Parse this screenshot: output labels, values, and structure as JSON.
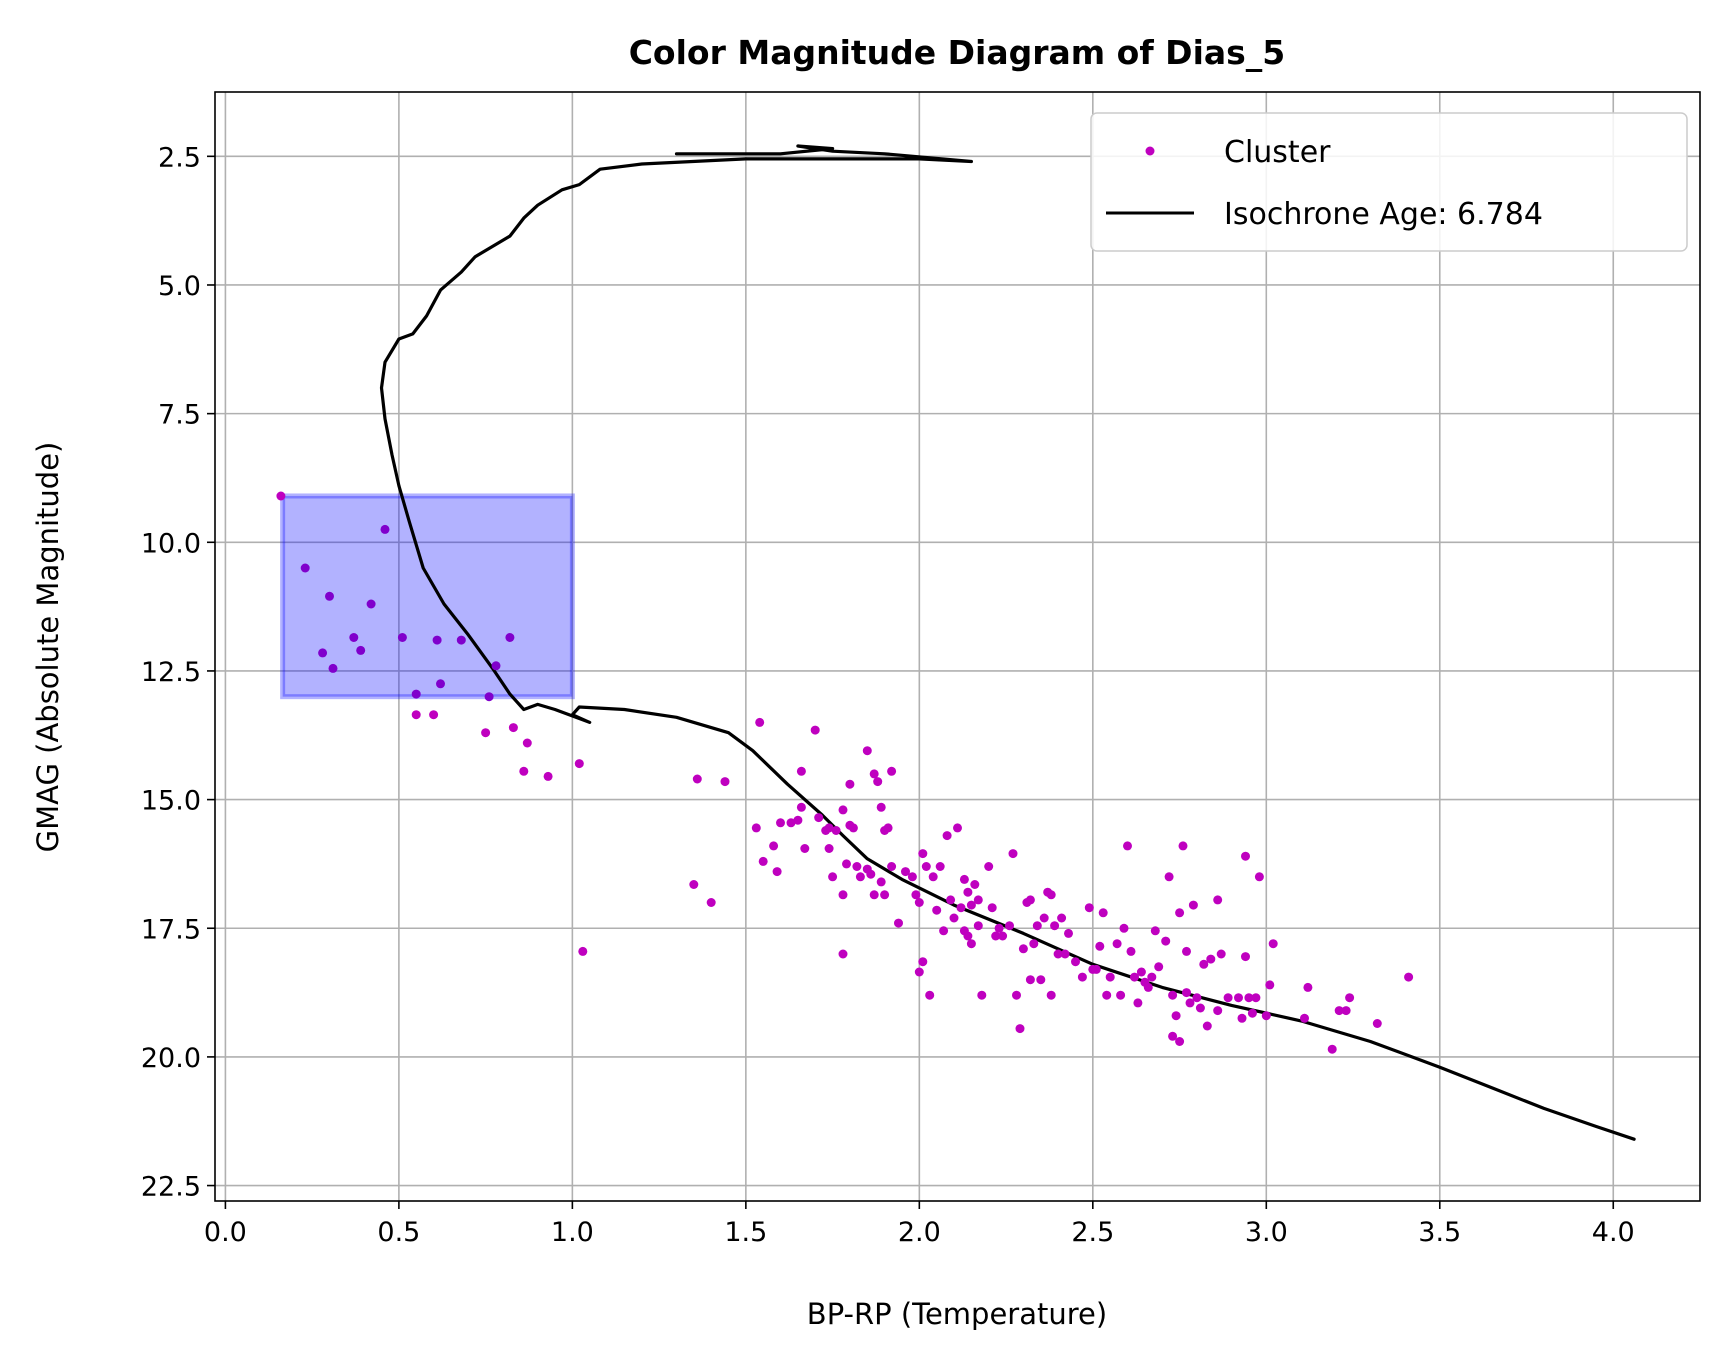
{
  "chart_data": {
    "type": "scatter",
    "title": "Color Magnitude Diagram of Dias_5",
    "xlabel": "BP-RP (Temperature)",
    "ylabel": "GMAG (Absolute Magnitude)",
    "xlim": [
      -0.03,
      4.25
    ],
    "ylim": [
      22.8,
      1.25
    ],
    "y_inverted": true,
    "xticks": [
      0.0,
      0.5,
      1.0,
      1.5,
      2.0,
      2.5,
      3.0,
      3.5,
      4.0
    ],
    "xtick_labels": [
      "0.0",
      "0.5",
      "1.0",
      "1.5",
      "2.0",
      "2.5",
      "3.0",
      "3.5",
      "4.0"
    ],
    "yticks": [
      2.5,
      5.0,
      7.5,
      10.0,
      12.5,
      15.0,
      17.5,
      20.0,
      22.5
    ],
    "ytick_labels": [
      "2.5",
      "5.0",
      "7.5",
      "10.0",
      "12.5",
      "15.0",
      "17.5",
      "20.0",
      "22.5"
    ],
    "grid": true,
    "legend_position": "top-right",
    "colors": {
      "cluster": "#bf00bf",
      "highlighted": "#8000cc",
      "isochrone": "#000000",
      "selection_fill": "#0000ff",
      "grid": "#b0b0b0"
    },
    "selection_box": {
      "x": [
        0.165,
        1.0
      ],
      "y": [
        9.1,
        13.0
      ]
    },
    "series": [
      {
        "name": "Cluster",
        "kind": "scatter",
        "points": [
          [
            0.16,
            9.1
          ],
          [
            0.23,
            10.5
          ],
          [
            0.3,
            11.05
          ],
          [
            0.28,
            12.15
          ],
          [
            0.31,
            12.45
          ],
          [
            0.37,
            11.85
          ],
          [
            0.39,
            12.1
          ],
          [
            0.42,
            11.2
          ],
          [
            0.46,
            9.75
          ],
          [
            0.51,
            11.85
          ],
          [
            0.55,
            12.95
          ],
          [
            0.61,
            11.9
          ],
          [
            0.62,
            12.75
          ],
          [
            0.68,
            11.9
          ],
          [
            0.76,
            13.0
          ],
          [
            0.78,
            12.4
          ],
          [
            0.82,
            11.85
          ],
          [
            0.55,
            13.35
          ],
          [
            0.6,
            13.35
          ],
          [
            0.75,
            13.7
          ],
          [
            0.83,
            13.6
          ],
          [
            0.86,
            14.45
          ],
          [
            0.87,
            13.9
          ],
          [
            0.93,
            14.55
          ],
          [
            1.02,
            14.3
          ],
          [
            1.03,
            17.95
          ],
          [
            1.35,
            16.65
          ],
          [
            1.36,
            14.6
          ],
          [
            1.4,
            17.0
          ],
          [
            1.44,
            14.65
          ],
          [
            1.53,
            15.55
          ],
          [
            1.54,
            13.5
          ],
          [
            1.55,
            16.2
          ],
          [
            1.58,
            15.9
          ],
          [
            1.59,
            16.4
          ],
          [
            1.6,
            15.45
          ],
          [
            1.63,
            15.45
          ],
          [
            1.65,
            15.4
          ],
          [
            1.66,
            15.15
          ],
          [
            1.66,
            14.45
          ],
          [
            1.67,
            15.95
          ],
          [
            1.7,
            13.65
          ],
          [
            1.71,
            15.35
          ],
          [
            1.73,
            15.6
          ],
          [
            1.74,
            15.55
          ],
          [
            1.74,
            15.95
          ],
          [
            1.75,
            16.5
          ],
          [
            1.76,
            15.6
          ],
          [
            1.78,
            15.2
          ],
          [
            1.78,
            16.85
          ],
          [
            1.79,
            16.25
          ],
          [
            1.78,
            18.0
          ],
          [
            1.8,
            14.7
          ],
          [
            1.8,
            15.5
          ],
          [
            1.81,
            15.55
          ],
          [
            1.82,
            16.3
          ],
          [
            1.83,
            16.5
          ],
          [
            1.85,
            14.05
          ],
          [
            1.85,
            16.35
          ],
          [
            1.86,
            16.45
          ],
          [
            1.87,
            14.5
          ],
          [
            1.87,
            16.85
          ],
          [
            1.88,
            14.65
          ],
          [
            1.89,
            16.6
          ],
          [
            1.89,
            15.15
          ],
          [
            1.9,
            15.6
          ],
          [
            1.9,
            16.85
          ],
          [
            1.91,
            15.55
          ],
          [
            1.92,
            14.45
          ],
          [
            1.92,
            16.3
          ],
          [
            1.94,
            17.4
          ],
          [
            1.96,
            16.4
          ],
          [
            1.98,
            16.5
          ],
          [
            1.99,
            16.85
          ],
          [
            2.0,
            17.0
          ],
          [
            2.0,
            18.35
          ],
          [
            2.01,
            18.15
          ],
          [
            2.01,
            16.05
          ],
          [
            2.02,
            16.3
          ],
          [
            2.03,
            18.8
          ],
          [
            2.04,
            16.5
          ],
          [
            2.05,
            17.15
          ],
          [
            2.06,
            16.3
          ],
          [
            2.07,
            17.55
          ],
          [
            2.08,
            15.7
          ],
          [
            2.09,
            16.95
          ],
          [
            2.1,
            17.3
          ],
          [
            2.11,
            15.55
          ],
          [
            2.12,
            17.1
          ],
          [
            2.13,
            16.55
          ],
          [
            2.13,
            17.55
          ],
          [
            2.14,
            16.8
          ],
          [
            2.14,
            17.65
          ],
          [
            2.15,
            17.05
          ],
          [
            2.15,
            17.8
          ],
          [
            2.16,
            16.65
          ],
          [
            2.17,
            17.45
          ],
          [
            2.17,
            16.95
          ],
          [
            2.18,
            18.8
          ],
          [
            2.2,
            16.3
          ],
          [
            2.21,
            17.1
          ],
          [
            2.22,
            17.65
          ],
          [
            2.23,
            17.5
          ],
          [
            2.24,
            17.65
          ],
          [
            2.26,
            17.45
          ],
          [
            2.27,
            16.05
          ],
          [
            2.28,
            18.8
          ],
          [
            2.29,
            19.45
          ],
          [
            2.3,
            17.9
          ],
          [
            2.31,
            17.0
          ],
          [
            2.32,
            16.95
          ],
          [
            2.32,
            18.5
          ],
          [
            2.33,
            17.8
          ],
          [
            2.34,
            17.45
          ],
          [
            2.35,
            18.5
          ],
          [
            2.36,
            17.3
          ],
          [
            2.37,
            16.8
          ],
          [
            2.38,
            16.85
          ],
          [
            2.38,
            18.8
          ],
          [
            2.39,
            17.45
          ],
          [
            2.4,
            18.0
          ],
          [
            2.41,
            17.3
          ],
          [
            2.42,
            18.0
          ],
          [
            2.43,
            17.6
          ],
          [
            2.45,
            18.15
          ],
          [
            2.47,
            18.45
          ],
          [
            2.49,
            17.1
          ],
          [
            2.5,
            18.3
          ],
          [
            2.51,
            18.3
          ],
          [
            2.52,
            17.85
          ],
          [
            2.53,
            17.2
          ],
          [
            2.54,
            18.8
          ],
          [
            2.55,
            18.45
          ],
          [
            2.57,
            17.8
          ],
          [
            2.58,
            18.8
          ],
          [
            2.59,
            17.5
          ],
          [
            2.6,
            15.9
          ],
          [
            2.61,
            17.95
          ],
          [
            2.62,
            18.45
          ],
          [
            2.63,
            18.95
          ],
          [
            2.64,
            18.35
          ],
          [
            2.65,
            18.55
          ],
          [
            2.66,
            18.65
          ],
          [
            2.67,
            18.45
          ],
          [
            2.68,
            17.55
          ],
          [
            2.69,
            18.25
          ],
          [
            2.71,
            17.75
          ],
          [
            2.72,
            16.5
          ],
          [
            2.73,
            19.6
          ],
          [
            2.73,
            18.8
          ],
          [
            2.74,
            19.2
          ],
          [
            2.75,
            17.2
          ],
          [
            2.75,
            19.7
          ],
          [
            2.76,
            15.9
          ],
          [
            2.77,
            18.75
          ],
          [
            2.77,
            17.95
          ],
          [
            2.78,
            18.95
          ],
          [
            2.79,
            17.05
          ],
          [
            2.8,
            18.85
          ],
          [
            2.81,
            19.05
          ],
          [
            2.82,
            18.2
          ],
          [
            2.83,
            19.4
          ],
          [
            2.84,
            18.1
          ],
          [
            2.86,
            19.1
          ],
          [
            2.86,
            16.95
          ],
          [
            2.87,
            18.0
          ],
          [
            2.89,
            18.85
          ],
          [
            2.92,
            18.85
          ],
          [
            2.93,
            19.25
          ],
          [
            2.94,
            18.05
          ],
          [
            2.94,
            16.1
          ],
          [
            2.95,
            18.85
          ],
          [
            2.96,
            19.15
          ],
          [
            2.97,
            18.85
          ],
          [
            2.98,
            16.5
          ],
          [
            3.0,
            19.2
          ],
          [
            3.01,
            18.6
          ],
          [
            3.02,
            17.8
          ],
          [
            3.11,
            19.25
          ],
          [
            3.12,
            18.65
          ],
          [
            3.19,
            19.85
          ],
          [
            3.21,
            19.1
          ],
          [
            3.23,
            19.1
          ],
          [
            3.24,
            18.85
          ],
          [
            3.32,
            19.35
          ],
          [
            3.41,
            18.45
          ]
        ]
      },
      {
        "name": "Isochrone Age: 6.784",
        "kind": "line",
        "points": [
          [
            4.06,
            21.6
          ],
          [
            3.95,
            21.35
          ],
          [
            3.8,
            21.0
          ],
          [
            3.65,
            20.6
          ],
          [
            3.5,
            20.2
          ],
          [
            3.3,
            19.7
          ],
          [
            3.1,
            19.3
          ],
          [
            2.9,
            19.0
          ],
          [
            2.7,
            18.65
          ],
          [
            2.5,
            18.2
          ],
          [
            2.3,
            17.6
          ],
          [
            2.1,
            17.05
          ],
          [
            1.95,
            16.55
          ],
          [
            1.85,
            16.15
          ],
          [
            1.78,
            15.7
          ],
          [
            1.72,
            15.3
          ],
          [
            1.62,
            14.7
          ],
          [
            1.52,
            14.05
          ],
          [
            1.45,
            13.7
          ],
          [
            1.3,
            13.4
          ],
          [
            1.15,
            13.25
          ],
          [
            1.02,
            13.2
          ],
          [
            1.0,
            13.35
          ],
          [
            1.05,
            13.5
          ],
          [
            0.95,
            13.25
          ],
          [
            0.9,
            13.15
          ],
          [
            0.86,
            13.25
          ],
          [
            0.82,
            12.95
          ],
          [
            0.77,
            12.45
          ],
          [
            0.7,
            11.8
          ],
          [
            0.63,
            11.2
          ],
          [
            0.57,
            10.5
          ],
          [
            0.53,
            9.6
          ],
          [
            0.5,
            8.9
          ],
          [
            0.48,
            8.3
          ],
          [
            0.46,
            7.6
          ],
          [
            0.45,
            7.0
          ],
          [
            0.46,
            6.5
          ],
          [
            0.5,
            6.05
          ],
          [
            0.54,
            5.95
          ],
          [
            0.58,
            5.6
          ],
          [
            0.62,
            5.1
          ],
          [
            0.68,
            4.75
          ],
          [
            0.72,
            4.45
          ],
          [
            0.77,
            4.25
          ],
          [
            0.82,
            4.05
          ],
          [
            0.86,
            3.7
          ],
          [
            0.9,
            3.45
          ],
          [
            0.97,
            3.15
          ],
          [
            1.02,
            3.05
          ],
          [
            1.08,
            2.75
          ],
          [
            1.2,
            2.65
          ],
          [
            1.5,
            2.55
          ],
          [
            2.0,
            2.55
          ],
          [
            2.15,
            2.6
          ],
          [
            1.9,
            2.45
          ],
          [
            1.75,
            2.4
          ],
          [
            1.65,
            2.3
          ],
          [
            1.75,
            2.35
          ],
          [
            1.6,
            2.45
          ],
          [
            1.3,
            2.45
          ]
        ]
      }
    ]
  }
}
